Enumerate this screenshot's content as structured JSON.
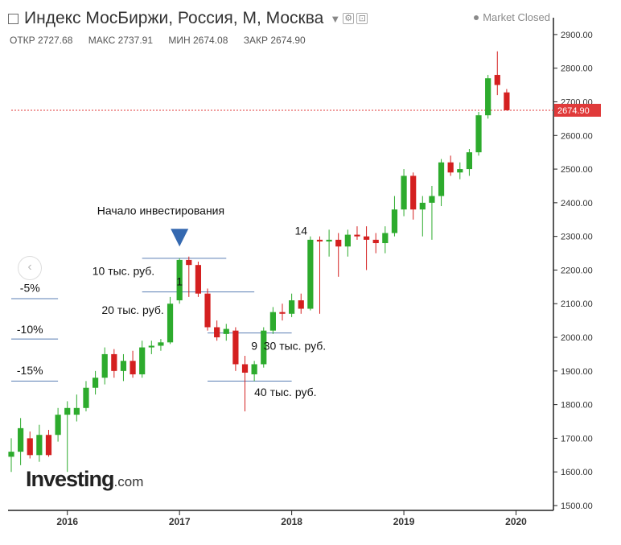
{
  "header": {
    "title": "Индекс МосБиржи, Россия, М, Москва",
    "dropdown_icon": "chevron-down-icon",
    "buttons": [
      {
        "name": "settings-button",
        "icon": "gear-icon",
        "glyph": "⚙"
      },
      {
        "name": "fullscreen-button",
        "icon": "expand-icon",
        "glyph": "⊡"
      }
    ],
    "market_status": "Market Closed"
  },
  "ohlc": {
    "open_label": "ОТКР",
    "open": "2727.68",
    "high_label": "МАКС",
    "high": "2737.91",
    "low_label": "МИН",
    "low": "2674.08",
    "close_label": "ЗАКР",
    "close": "2674.90"
  },
  "logo": {
    "name": "Investing",
    "suffix": ".com"
  },
  "colors": {
    "up": "#2dab2d",
    "down": "#d42020",
    "current_price": "#e03a3a",
    "axis": "#222222",
    "annotation_line": "#5b7fb5",
    "marker": "#3569b0"
  },
  "chart_data": {
    "type": "candlestick",
    "x_axis": {
      "range": [
        "2015-07",
        "2020-05"
      ],
      "ticks": [
        "2016",
        "2017",
        "2018",
        "2019",
        "2020"
      ]
    },
    "y_axis": {
      "range": [
        1500,
        2950
      ],
      "ticks": [
        "1500.00",
        "1600.00",
        "1700.00",
        "1800.00",
        "1900.00",
        "2000.00",
        "2100.00",
        "2200.00",
        "2300.00",
        "2400.00",
        "2500.00",
        "2600.00",
        "2700.00",
        "2800.00",
        "2900.00"
      ]
    },
    "current_price": {
      "value": 2674.9,
      "label": "2674.90"
    },
    "candles": [
      {
        "date": "2015-07",
        "open": 1645,
        "high": 1700,
        "low": 1600,
        "close": 1660
      },
      {
        "date": "2015-08",
        "open": 1660,
        "high": 1760,
        "low": 1620,
        "close": 1730
      },
      {
        "date": "2015-09",
        "open": 1700,
        "high": 1720,
        "low": 1640,
        "close": 1650
      },
      {
        "date": "2015-10",
        "open": 1650,
        "high": 1740,
        "low": 1630,
        "close": 1710
      },
      {
        "date": "2015-11",
        "open": 1710,
        "high": 1725,
        "low": 1645,
        "close": 1650
      },
      {
        "date": "2015-12",
        "open": 1710,
        "high": 1790,
        "low": 1690,
        "close": 1770
      },
      {
        "date": "2016-01",
        "open": 1770,
        "high": 1810,
        "low": 1600,
        "close": 1790
      },
      {
        "date": "2016-02",
        "open": 1770,
        "high": 1830,
        "low": 1750,
        "close": 1790
      },
      {
        "date": "2016-03",
        "open": 1790,
        "high": 1870,
        "low": 1780,
        "close": 1850
      },
      {
        "date": "2016-04",
        "open": 1850,
        "high": 1900,
        "low": 1830,
        "close": 1880
      },
      {
        "date": "2016-05",
        "open": 1880,
        "high": 1970,
        "low": 1860,
        "close": 1950
      },
      {
        "date": "2016-06",
        "open": 1950,
        "high": 1965,
        "low": 1880,
        "close": 1900
      },
      {
        "date": "2016-07",
        "open": 1900,
        "high": 1950,
        "low": 1870,
        "close": 1930
      },
      {
        "date": "2016-08",
        "open": 1930,
        "high": 1960,
        "low": 1880,
        "close": 1890
      },
      {
        "date": "2016-09",
        "open": 1890,
        "high": 1990,
        "low": 1880,
        "close": 1970
      },
      {
        "date": "2016-10",
        "open": 1970,
        "high": 1990,
        "low": 1950,
        "close": 1975
      },
      {
        "date": "2016-11",
        "open": 1975,
        "high": 1995,
        "low": 1960,
        "close": 1985
      },
      {
        "date": "2016-12",
        "open": 1985,
        "high": 2120,
        "low": 1980,
        "close": 2100
      },
      {
        "date": "2017-01",
        "open": 2110,
        "high": 2235,
        "low": 2100,
        "close": 2230
      },
      {
        "date": "2017-02",
        "open": 2230,
        "high": 2240,
        "low": 2120,
        "close": 2215
      },
      {
        "date": "2017-03",
        "open": 2215,
        "high": 2225,
        "low": 2120,
        "close": 2130
      },
      {
        "date": "2017-04",
        "open": 2130,
        "high": 2145,
        "low": 2020,
        "close": 2030
      },
      {
        "date": "2017-05",
        "open": 2030,
        "high": 2050,
        "low": 1990,
        "close": 2000
      },
      {
        "date": "2017-06",
        "open": 2010,
        "high": 2040,
        "low": 1990,
        "close": 2025
      },
      {
        "date": "2017-07",
        "open": 2020,
        "high": 2030,
        "low": 1900,
        "close": 1920
      },
      {
        "date": "2017-08",
        "open": 1920,
        "high": 1945,
        "low": 1780,
        "close": 1895
      },
      {
        "date": "2017-09",
        "open": 1890,
        "high": 1930,
        "low": 1870,
        "close": 1920
      },
      {
        "date": "2017-10",
        "open": 1920,
        "high": 2030,
        "low": 1910,
        "close": 2020
      },
      {
        "date": "2017-11",
        "open": 2020,
        "high": 2090,
        "low": 2010,
        "close": 2075
      },
      {
        "date": "2017-12",
        "open": 2075,
        "high": 2100,
        "low": 2050,
        "close": 2070
      },
      {
        "date": "2018-01",
        "open": 2070,
        "high": 2130,
        "low": 2060,
        "close": 2110
      },
      {
        "date": "2018-02",
        "open": 2110,
        "high": 2130,
        "low": 2070,
        "close": 2085
      },
      {
        "date": "2018-03",
        "open": 2085,
        "high": 2300,
        "low": 2080,
        "close": 2290
      },
      {
        "date": "2018-04",
        "open": 2290,
        "high": 2300,
        "low": 2070,
        "close": 2285
      },
      {
        "date": "2018-05",
        "open": 2285,
        "high": 2320,
        "low": 2240,
        "close": 2290
      },
      {
        "date": "2018-06",
        "open": 2290,
        "high": 2310,
        "low": 2180,
        "close": 2270
      },
      {
        "date": "2018-07",
        "open": 2270,
        "high": 2320,
        "low": 2240,
        "close": 2305
      },
      {
        "date": "2018-08",
        "open": 2305,
        "high": 2330,
        "low": 2290,
        "close": 2300
      },
      {
        "date": "2018-09",
        "open": 2300,
        "high": 2330,
        "low": 2200,
        "close": 2290
      },
      {
        "date": "2018-10",
        "open": 2290,
        "high": 2310,
        "low": 2250,
        "close": 2280
      },
      {
        "date": "2018-11",
        "open": 2280,
        "high": 2330,
        "low": 2250,
        "close": 2310
      },
      {
        "date": "2018-12",
        "open": 2310,
        "high": 2420,
        "low": 2300,
        "close": 2380
      },
      {
        "date": "2019-01",
        "open": 2380,
        "high": 2500,
        "low": 2360,
        "close": 2480
      },
      {
        "date": "2019-02",
        "open": 2480,
        "high": 2490,
        "low": 2350,
        "close": 2380
      },
      {
        "date": "2019-03",
        "open": 2380,
        "high": 2420,
        "low": 2300,
        "close": 2400
      },
      {
        "date": "2019-04",
        "open": 2400,
        "high": 2450,
        "low": 2290,
        "close": 2420
      },
      {
        "date": "2019-05",
        "open": 2420,
        "high": 2530,
        "low": 2390,
        "close": 2520
      },
      {
        "date": "2019-06",
        "open": 2520,
        "high": 2540,
        "low": 2480,
        "close": 2490
      },
      {
        "date": "2019-07",
        "open": 2490,
        "high": 2520,
        "low": 2470,
        "close": 2500
      },
      {
        "date": "2019-08",
        "open": 2500,
        "high": 2560,
        "low": 2480,
        "close": 2550
      },
      {
        "date": "2019-09",
        "open": 2550,
        "high": 2670,
        "low": 2540,
        "close": 2660
      },
      {
        "date": "2019-10",
        "open": 2660,
        "high": 2780,
        "low": 2650,
        "close": 2770
      },
      {
        "date": "2019-11",
        "open": 2780,
        "high": 2850,
        "low": 2720,
        "close": 2750
      },
      {
        "date": "2019-12",
        "open": 2728,
        "high": 2738,
        "low": 2674,
        "close": 2675
      }
    ],
    "annotations": [
      {
        "name": "start-investing-label",
        "text": "Начало инвестирования",
        "date": "2016-11",
        "price": 2365,
        "anchor": "middle"
      },
      {
        "name": "candle-label-1",
        "text": "1",
        "date": "2017-01",
        "price": 2155,
        "anchor": "middle"
      },
      {
        "name": "candle-label-9",
        "text": "9",
        "date": "2017-09",
        "price": 1963,
        "anchor": "middle"
      },
      {
        "name": "candle-label-14",
        "text": "14",
        "date": "2018-02",
        "price": 2305,
        "anchor": "middle"
      },
      {
        "name": "pct-5-label",
        "text": "-5%",
        "date": "2015-09",
        "price": 2135,
        "anchor": "middle"
      },
      {
        "name": "pct-10-label",
        "text": "-10%",
        "date": "2015-09",
        "price": 2012,
        "anchor": "middle"
      },
      {
        "name": "pct-15-label",
        "text": "-15%",
        "date": "2015-09",
        "price": 1890,
        "anchor": "middle"
      },
      {
        "name": "amount-10k-label",
        "text": "10 тыс. руб.",
        "date": "2016-07",
        "price": 2185,
        "anchor": "middle"
      },
      {
        "name": "amount-20k-label",
        "text": "20 тыс. руб.",
        "date": "2016-08",
        "price": 2070,
        "anchor": "middle"
      },
      {
        "name": "amount-30k-label",
        "text": "30 тыс. руб.",
        "date": "2017-10",
        "price": 1963,
        "anchor": "start"
      },
      {
        "name": "amount-40k-label",
        "text": "40 тыс. руб.",
        "date": "2017-09",
        "price": 1825,
        "anchor": "start"
      }
    ],
    "levels": [
      {
        "name": "level-line-10k",
        "price": 2235,
        "from": "2016-09",
        "to": "2017-06"
      },
      {
        "name": "level-line-20k",
        "price": 2135,
        "from": "2016-09",
        "to": "2017-09"
      },
      {
        "name": "level-line-30k",
        "price": 2013,
        "from": "2017-04",
        "to": "2018-01"
      },
      {
        "name": "level-line-40k",
        "price": 1870,
        "from": "2017-04",
        "to": "2018-01"
      },
      {
        "name": "level-line-5pct",
        "price": 2115,
        "from": "2015-07",
        "to": "2015-12"
      },
      {
        "name": "level-line-10pct",
        "price": 1995,
        "from": "2015-07",
        "to": "2015-12"
      },
      {
        "name": "level-line-15pct",
        "price": 1870,
        "from": "2015-07",
        "to": "2015-12"
      }
    ],
    "marker": {
      "name": "entry-marker-triangle",
      "date": "2017-01",
      "price": 2270
    }
  }
}
